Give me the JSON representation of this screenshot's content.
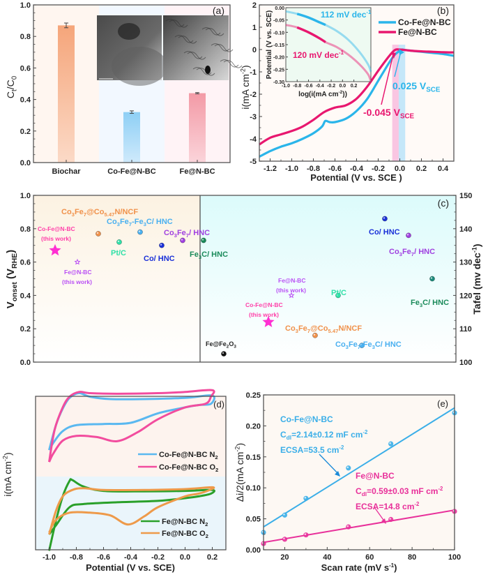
{
  "chart_data": [
    {
      "panel": "a",
      "type": "bar",
      "panel_label": "(a)",
      "categories": [
        "Biochar",
        "Co-Fe@N-BC",
        "Fe@N-BC"
      ],
      "values": [
        0.87,
        0.32,
        0.44
      ],
      "errors": [
        0.015,
        0.008,
        0.004
      ],
      "colors": [
        "#f5a57a",
        "#8ecff5",
        "#f39aa6"
      ],
      "band_colors": [
        "#fff6f0",
        "#f2f8ff",
        "#fff3f6"
      ],
      "xlabel": "",
      "ylabel": "Ct/C0",
      "ylim": [
        0,
        1.0
      ],
      "yticks": [
        "0.0",
        "0.2",
        "0.4",
        "0.6",
        "0.8",
        "1.0"
      ],
      "inset": "two TEM micrographs (Co-Fe@N-BC, Fe@N-BC)"
    },
    {
      "panel": "b",
      "type": "line",
      "panel_label": "(b)",
      "xlabel": "Potential (V vs. SCE )",
      "ylabel": "i(mA cm-2)",
      "xlim": [
        -1.3,
        0.5
      ],
      "ylim": [
        -5,
        2
      ],
      "xticks": [
        "-1.2",
        "-1.0",
        "-0.8",
        "-0.6",
        "-0.4",
        "-0.2",
        "0.0",
        "0.2",
        "0.4"
      ],
      "yticks": [
        "-5",
        "-4",
        "-3",
        "-2",
        "-1",
        "0",
        "1",
        "2"
      ],
      "series": [
        {
          "name": "Co-Fe@N-BC",
          "color": "#2ab5ea",
          "x": [
            -1.3,
            -1.2,
            -1.1,
            -1.0,
            -0.9,
            -0.8,
            -0.72,
            -0.69,
            -0.65,
            -0.6,
            -0.5,
            -0.4,
            -0.3,
            -0.2,
            -0.1,
            -0.05,
            0.0,
            0.02,
            0.05,
            0.1,
            0.2,
            0.3,
            0.4,
            0.5
          ],
          "y": [
            -4.8,
            -4.55,
            -4.35,
            -4.2,
            -4.0,
            -3.75,
            -3.45,
            -3.2,
            -3.25,
            -3.25,
            -3.1,
            -2.75,
            -2.2,
            -1.4,
            -0.6,
            -0.25,
            -0.05,
            0.0,
            -0.02,
            -0.05,
            -0.1,
            -0.15,
            -0.2,
            -0.28
          ]
        },
        {
          "name": "Fe@N-BC",
          "color": "#e8176f",
          "x": [
            -1.3,
            -1.2,
            -1.1,
            -1.0,
            -0.9,
            -0.8,
            -0.7,
            -0.6,
            -0.5,
            -0.4,
            -0.3,
            -0.2,
            -0.1,
            -0.045,
            0.0,
            0.1,
            0.2,
            0.3,
            0.4,
            0.5
          ],
          "y": [
            -4.25,
            -3.95,
            -3.8,
            -3.65,
            -3.45,
            -3.15,
            -2.8,
            -2.6,
            -2.5,
            -2.2,
            -1.65,
            -0.95,
            -0.3,
            -0.02,
            0.0,
            -0.05,
            -0.08,
            -0.1,
            -0.12,
            -0.13
          ]
        }
      ],
      "annotations": [
        {
          "text": "0.025 V",
          "sub": "SCE",
          "color": "#2ab5ea",
          "x": 0.025
        },
        {
          "text": "-0.045 V",
          "sub": "SCE",
          "color": "#e8176f",
          "x": -0.045
        }
      ],
      "inset": {
        "xlabel": "log(i(mA cm-2))",
        "ylabel": "Potential (V vs. SCE)",
        "xlim": [
          -1.0,
          0.5
        ],
        "ylim": [
          -0.3,
          0.0
        ],
        "xticks": [
          "-1.0",
          "-0.8",
          "-0.6",
          "-0.4",
          "-0.2",
          "0.0",
          "0.2"
        ],
        "yticks": [
          "0.00",
          "-0.05",
          "-0.10",
          "-0.15",
          "-0.20",
          "-0.25",
          "-0.30"
        ],
        "series": [
          {
            "name": "Co-Fe@N-BC",
            "slope_label": "112 mV dec-1",
            "color": "#2ab5ea",
            "x": [
              -1.0,
              -0.8,
              -0.6,
              -0.4,
              -0.3,
              -0.1,
              0.1,
              0.3,
              0.45,
              0.5
            ],
            "y": [
              -0.015,
              -0.025,
              -0.04,
              -0.06,
              -0.07,
              -0.095,
              -0.13,
              -0.18,
              -0.23,
              -0.26
            ]
          },
          {
            "name": "Fe@N-BC",
            "slope_label": "120 mV dec-1",
            "color": "#e8176f",
            "x": [
              -1.0,
              -0.8,
              -0.6,
              -0.4,
              -0.3,
              -0.1,
              0.1,
              0.3,
              0.45,
              0.5
            ],
            "y": [
              -0.07,
              -0.08,
              -0.1,
              -0.125,
              -0.14,
              -0.16,
              -0.19,
              -0.23,
              -0.27,
              -0.3
            ]
          }
        ]
      }
    },
    {
      "panel": "c",
      "type": "scatter",
      "panel_label": "(c)",
      "left": {
        "ylabel": "Vonset (VRHE)",
        "ylim": [
          0,
          1.0
        ],
        "yticks": [
          "0.0",
          "0.2",
          "0.4",
          "0.6",
          "0.8",
          "1.0"
        ],
        "points": [
          {
            "label": "Co-Fe@N-BC (this work)",
            "value": 0.67,
            "color": "#ff2fd2",
            "marker": "star-large"
          },
          {
            "label": "Fe@N-BC (this work)",
            "value": 0.6,
            "color": "#b94ff5",
            "marker": "star-small"
          },
          {
            "label": "Co3Fe7@Co5.47N/NCF",
            "value": 0.77,
            "color": "#f0914a",
            "marker": "ball"
          },
          {
            "label": "Pt/C",
            "value": 0.72,
            "color": "#30e0a8",
            "marker": "ball"
          },
          {
            "label": "Co3Fe7-Fe3C/ HNC",
            "value": 0.78,
            "color": "#4ab0f0",
            "marker": "ball"
          },
          {
            "label": "Co/ HNC",
            "value": 0.7,
            "color": "#1a30d8",
            "marker": "ball"
          },
          {
            "label": "Co3Fe7/ HNC",
            "value": 0.73,
            "color": "#a040e0",
            "marker": "ball"
          },
          {
            "label": "Fe3C/ HNC",
            "value": 0.73,
            "color": "#1a8a5a",
            "marker": "ball"
          },
          {
            "label": "Fe@Fe2O3",
            "value": 0.05,
            "color": "#111111",
            "marker": "ball"
          }
        ]
      },
      "right": {
        "ylabel": "Tafel (mv dec-1)",
        "ylim": [
          100,
          150
        ],
        "yticks": [
          "100",
          "110",
          "120",
          "130",
          "140",
          "150"
        ],
        "points": [
          {
            "label": "Co-Fe@N-BC (this work)",
            "value": 112,
            "color": "#ff2fd2",
            "marker": "star-large"
          },
          {
            "label": "Fe@N-BC (this work)",
            "value": 120,
            "color": "#b94ff5",
            "marker": "star-small"
          },
          {
            "label": "Pt/C",
            "value": 120,
            "color": "#30e0a8",
            "marker": "ball"
          },
          {
            "label": "Co3Fe7@Co5.47N/NCF",
            "value": 108,
            "color": "#f0914a",
            "marker": "ball"
          },
          {
            "label": "Co3Fe7-Fe3C/ HNC",
            "value": 105,
            "color": "#4ab0f0",
            "marker": "ball"
          },
          {
            "label": "Co/ HNC",
            "value": 143,
            "color": "#1a30d8",
            "marker": "ball"
          },
          {
            "label": "Co3Fe7/ HNC",
            "value": 138,
            "color": "#a040e0",
            "marker": "ball"
          },
          {
            "label": "Fe3C/ HNC",
            "value": 125,
            "color": "#1a8a7a",
            "marker": "ball"
          }
        ]
      }
    },
    {
      "panel": "d",
      "type": "line",
      "panel_label": "(d)",
      "xlabel": "Potential (V vs. SCE)",
      "ylabel": "i(mA cm-2)",
      "xlim": [
        -1.1,
        0.3
      ],
      "xticks": [
        "-1.0",
        "-0.8",
        "-0.6",
        "-0.4",
        "-0.2",
        "0.0",
        "0.2"
      ],
      "legend_top": [
        "Co-Fe@N-BC N2",
        "Co-Fe@N-BC O2"
      ],
      "legend_bottom": [
        "Fe@N-BC N2",
        "Fe@N-BC O2"
      ],
      "series": [
        {
          "name": "Co-Fe@N-BC N2",
          "color": "#5ab8f0",
          "group": "top"
        },
        {
          "name": "Co-Fe@N-BC O2",
          "color": "#f24c9e",
          "group": "top"
        },
        {
          "name": "Fe@N-BC N2",
          "color": "#2aa02a",
          "group": "bottom"
        },
        {
          "name": "Fe@N-BC O2",
          "color": "#ee9a4a",
          "group": "bottom"
        }
      ]
    },
    {
      "panel": "e",
      "type": "scatter",
      "panel_label": "(e)",
      "xlabel": "Scan rate (mV s-1)",
      "ylabel": "Δi/2(mA cm-2)",
      "xlim": [
        10,
        100
      ],
      "ylim": [
        0,
        0.25
      ],
      "xticks": [
        "20",
        "40",
        "60",
        "80",
        "100"
      ],
      "yticks": [
        "0.00",
        "0.05",
        "0.10",
        "0.15",
        "0.20",
        "0.25"
      ],
      "series": [
        {
          "name": "Co-Fe@N-BC",
          "color": "#3aaee8",
          "x": [
            10,
            20,
            30,
            50,
            70,
            100
          ],
          "y": [
            0.028,
            0.056,
            0.083,
            0.132,
            0.171,
            0.221
          ],
          "fit": [
            [
              10,
              0.037
            ],
            [
              100,
              0.229
            ]
          ],
          "cdl": "Cdl=2.14±0.12 mF cm-2",
          "ecsa": "ECSA=53.5 cm-2"
        },
        {
          "name": "Fe@N-BC",
          "color": "#e8309a",
          "x": [
            10,
            20,
            30,
            50,
            70,
            100
          ],
          "y": [
            0.01,
            0.017,
            0.024,
            0.037,
            0.049,
            0.062
          ],
          "fit": [
            [
              10,
              0.012
            ],
            [
              100,
              0.064
            ]
          ],
          "cdl": "Cdl=0.59±0.03 mF cm-2",
          "ecsa": "ECSA=14.8 cm-2"
        }
      ]
    }
  ],
  "text": {
    "a_label": "(a)",
    "a_ylabel": "Ct/C0",
    "b_label": "(b)",
    "b_xlabel": "Potential (V vs. SCE )",
    "b_ylabel": "i(mA cm",
    "b_leg1": "Co-Fe@N-BC",
    "b_leg2": "Fe@N-BC",
    "b_ann1": "0.025 V",
    "b_ann2": "-0.045 V",
    "sce": "SCE",
    "b_in_s1": "112 mV dec",
    "b_in_s2": "120 mV dec",
    "b_in_x": "log(i(mA cm",
    "b_in_y": "Potential (V vs. SCE)",
    "c_label": "(c)",
    "c_yl": "V",
    "c_yl_sub": "onset",
    "c_yl_2": " (V",
    "c_yl_sub2": "RHE",
    "c_yl_3": ")",
    "c_yr": "Tafel (mv dec",
    "this_work": "(this work)",
    "cofe": "Co-Fe@N-BC",
    "fe": "Fe@N-BC",
    "d_label": "(d)",
    "d_xlabel": "Potential (V vs. SCE)",
    "d_ylabel": "i(mA cm",
    "e_label": "(e)",
    "e_xlabel": "Scan rate (mV s",
    "e_ylabel": "Δi/2(mA cm",
    "e_cofe": "Co-Fe@N-BC",
    "e_cofe_cdl": "=2.14±0.12 mF cm",
    "e_cofe_ecsa": "ECSA=53.5 cm",
    "e_fe": "Fe@N-BC",
    "e_fe_cdl": "=0.59±0.03 mF cm",
    "e_fe_ecsa": "ECSA=14.8 cm"
  }
}
